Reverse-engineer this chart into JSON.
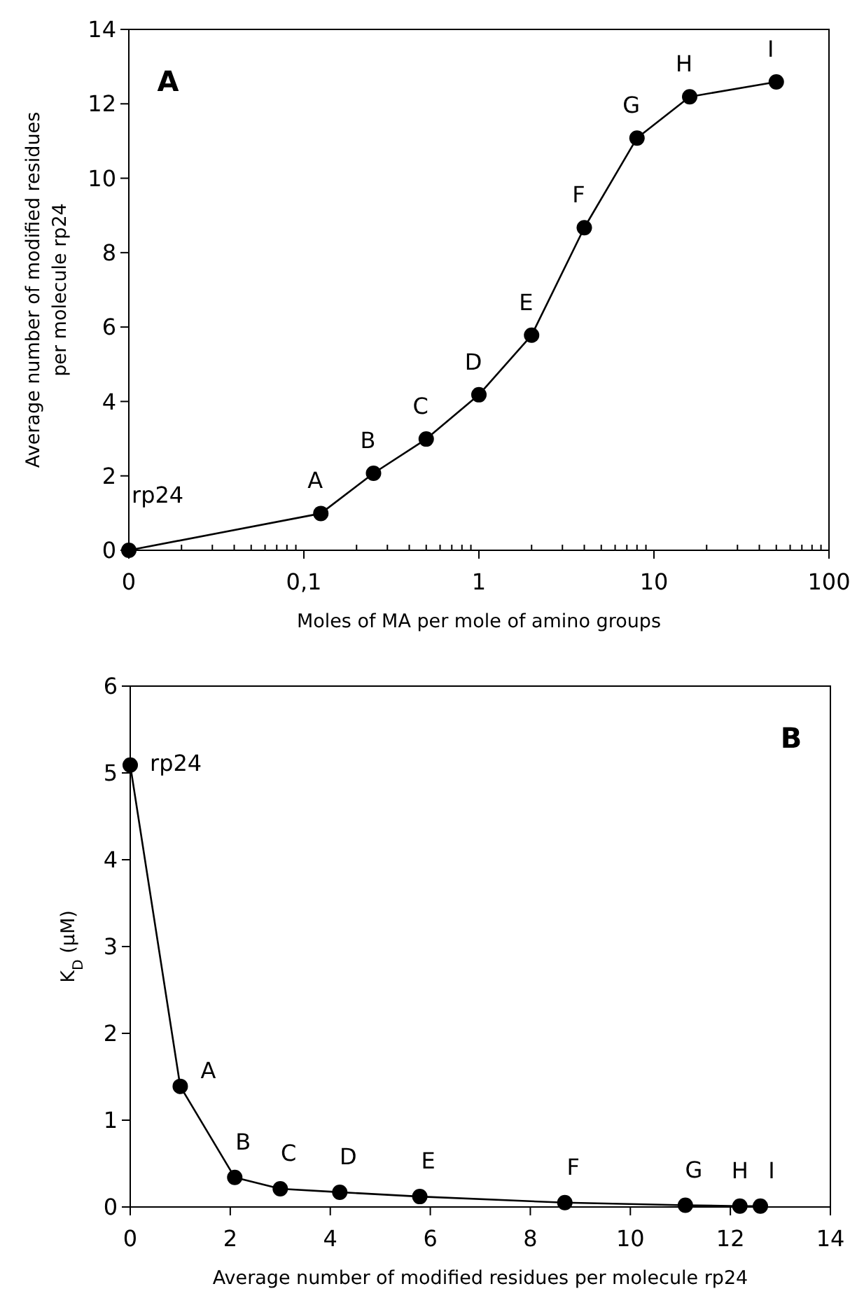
{
  "chart_data": [
    {
      "type": "line",
      "title": "A",
      "xlabel": "Moles of MA per mole of amino groups",
      "ylabel": "Average number of modified residues per molecule rp24",
      "log": "x",
      "xlim": [
        0.01,
        100
      ],
      "xticks": [
        {
          "value": 0.01,
          "label": "0"
        },
        {
          "value": 0.1,
          "label": "0,1"
        },
        1,
        10,
        100
      ],
      "ylim": [
        0,
        14
      ],
      "yticks": [
        0,
        2,
        4,
        6,
        8,
        10,
        12,
        14
      ],
      "grid": false,
      "marker": "circle",
      "line_style": "solid",
      "series": [
        {
          "color": "#000000",
          "x": [
            0.01,
            0.125,
            0.25,
            0.5,
            1,
            2,
            4,
            8,
            16,
            50
          ],
          "values": [
            0,
            0.99,
            2.07,
            2.99,
            4.18,
            5.78,
            8.67,
            11.08,
            12.19,
            12.59
          ]
        }
      ],
      "annotations": [
        {
          "text": "rp24",
          "x": 0.01,
          "y": 0
        },
        {
          "text": "A",
          "x": 0.125,
          "y": 0.99
        },
        {
          "text": "B",
          "x": 0.25,
          "y": 2.07
        },
        {
          "text": "C",
          "x": 0.5,
          "y": 2.99
        },
        {
          "text": "D",
          "x": 1,
          "y": 4.18
        },
        {
          "text": "E",
          "x": 2,
          "y": 5.78
        },
        {
          "text": "F",
          "x": 4,
          "y": 8.67
        },
        {
          "text": "G",
          "x": 8,
          "y": 11.08
        },
        {
          "text": "H",
          "x": 16,
          "y": 12.19
        },
        {
          "text": "I",
          "x": 50,
          "y": 12.59
        }
      ]
    },
    {
      "type": "line",
      "title": "B",
      "xlabel": "Average number of modified residues per molecule rp24",
      "ylabel": "K$_{D}$ (µM)",
      "xlim": [
        0,
        14
      ],
      "xticks": [
        0,
        2,
        4,
        6,
        8,
        10,
        12,
        14
      ],
      "ylim": [
        0,
        6
      ],
      "yticks": [
        0,
        1,
        2,
        3,
        4,
        5,
        6
      ],
      "grid": false,
      "marker": "circle",
      "line_style": "solid",
      "series": [
        {
          "color": "#000000",
          "x": [
            0,
            1,
            2.09,
            3,
            4.19,
            5.79,
            8.69,
            11.1,
            12.19,
            12.6
          ],
          "values": [
            5.09,
            1.39,
            0.34,
            0.21,
            0.17,
            0.12,
            0.05,
            0.02,
            0.01,
            0.01
          ]
        }
      ],
      "annotations": [
        {
          "text": "rp24",
          "x": 0,
          "y": 5.09
        },
        {
          "text": "A",
          "x": 1,
          "y": 1.39
        },
        {
          "text": "B",
          "x": 2.09,
          "y": 0.34
        },
        {
          "text": "C",
          "x": 3,
          "y": 0.21
        },
        {
          "text": "D",
          "x": 4.19,
          "y": 0.17
        },
        {
          "text": "E",
          "x": 5.79,
          "y": 0.12
        },
        {
          "text": "F",
          "x": 8.69,
          "y": 0.05
        },
        {
          "text": "G",
          "x": 11.1,
          "y": 0.02
        },
        {
          "text": "H",
          "x": 12.19,
          "y": 0.01
        },
        {
          "text": "I",
          "x": 12.6,
          "y": 0.01
        }
      ]
    }
  ]
}
